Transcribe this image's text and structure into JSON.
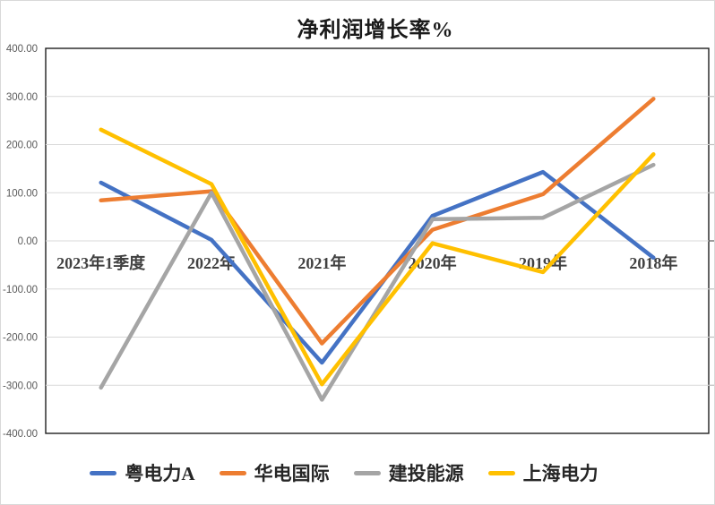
{
  "chart_data": {
    "type": "line",
    "title": "净利润增长率%",
    "categories": [
      "2023年1季度",
      "2022年",
      "2021年",
      "2020年",
      "2019年",
      "2018年"
    ],
    "series": [
      {
        "name": "粤电力A",
        "color": "#4472C4",
        "values": [
          121,
          2,
          -253,
          52,
          143,
          -35
        ]
      },
      {
        "name": "华电国际",
        "color": "#ED7D31",
        "values": [
          84,
          103,
          -213,
          23,
          97,
          295
        ]
      },
      {
        "name": "建投能源",
        "color": "#A5A5A5",
        "values": [
          -305,
          100,
          -330,
          45,
          48,
          158
        ]
      },
      {
        "name": "上海电力",
        "color": "#FFC000",
        "values": [
          231,
          118,
          -298,
          -5,
          -65,
          180
        ]
      }
    ],
    "y_axis": {
      "min": -400,
      "max": 400,
      "step": 100,
      "tick_labels": [
        "400.00",
        "300.00",
        "200.00",
        "100.00",
        "0.00",
        "-100.00",
        "-200.00",
        "-300.00",
        "-400.00"
      ]
    },
    "grid": true,
    "legend_position": "bottom",
    "x_label_position": "inside-below-zero-line",
    "ylim": [
      -400,
      400
    ]
  },
  "colors": {
    "background": "#FFFFFF",
    "plot_border": "#1f1f1f",
    "gridline": "#D9D9D9",
    "right_tick": "#BFBFBF",
    "zero_tick": "#595959",
    "y_label": "#595959",
    "x_label": "#404040",
    "title": "#1A1A1A",
    "legend_label": "#262626"
  }
}
